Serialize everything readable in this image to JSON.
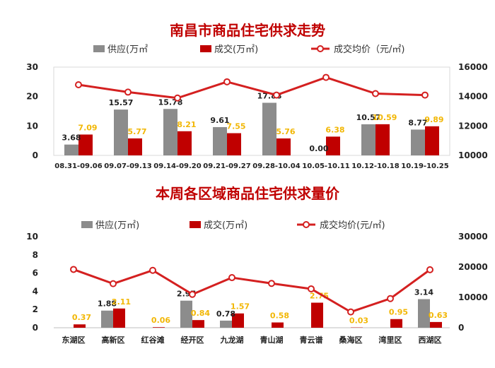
{
  "colors": {
    "supply": "#8c8c8c",
    "deal": "#c00000",
    "price": "#d42020",
    "value_label": "#f2b705",
    "title": "#c00000"
  },
  "legend": {
    "supply": "供应(万㎡",
    "deal": "成交(万㎡)",
    "price": "成交均价（元/㎡)"
  },
  "legend2": {
    "supply": "供应(万㎡)",
    "deal": "成交(万㎡)",
    "price": "成交均价(元/㎡)"
  },
  "chart_data": [
    {
      "type": "bar",
      "title": "南昌市商品住宅供求走势",
      "categories": [
        "08.31-09.06",
        "09.07-09.13",
        "09.14-09.20",
        "09.21-09.27",
        "09.28-10.04",
        "10.05-10.11",
        "10.12-10.18",
        "10.19-10.25"
      ],
      "series": [
        {
          "name": "供应(万㎡",
          "values": [
            3.68,
            15.57,
            15.78,
            9.61,
            17.88,
            0.0,
            10.57,
            8.77
          ],
          "labels": [
            "3.68",
            "15.57",
            "15.78",
            "9.61",
            "17.88",
            "0.00",
            "10.57",
            "8.77"
          ]
        },
        {
          "name": "成交(万㎡)",
          "values": [
            7.09,
            5.77,
            8.21,
            7.55,
            5.76,
            6.38,
            10.59,
            9.89
          ],
          "labels": [
            "7.09",
            "5.77",
            "8.21",
            "7.55",
            "5.76",
            "6.38",
            "10.59",
            "9.89"
          ]
        },
        {
          "name": "成交均价（元/㎡)",
          "type": "line",
          "axis": "right",
          "values": [
            14800,
            14300,
            13900,
            15000,
            14100,
            15300,
            14200,
            14100
          ]
        }
      ],
      "ylim": [
        0,
        30
      ],
      "yticks": [
        "0",
        "10",
        "20",
        "30"
      ],
      "y2lim": [
        10000,
        16000
      ],
      "y2ticks": [
        "10000",
        "12000",
        "14000",
        "16000"
      ]
    },
    {
      "type": "bar",
      "title": "本周各区域商品住宅供求量价",
      "categories": [
        "东湖区",
        "高新区",
        "红谷滩",
        "经开区",
        "九龙湖",
        "青山湖",
        "青云谱",
        "桑海区",
        "湾里区",
        "西湖区"
      ],
      "series": [
        {
          "name": "供应(万㎡)",
          "values": [
            0,
            1.88,
            0,
            2.97,
            0.78,
            0,
            0,
            0,
            0,
            3.14
          ],
          "labels": [
            "",
            "1.88",
            "",
            "2.97",
            "0.78",
            "",
            "",
            "",
            "",
            "3.14"
          ]
        },
        {
          "name": "成交(万㎡)",
          "values": [
            0.37,
            2.11,
            0.06,
            0.84,
            1.57,
            0.58,
            2.75,
            0.03,
            0.95,
            0.63
          ],
          "labels": [
            "0.37",
            "2.11",
            "0.06",
            "0.84",
            "1.57",
            "0.58",
            "2.75",
            "0.03",
            "0.95",
            "0.63"
          ]
        },
        {
          "name": "成交均价(元/㎡)",
          "type": "line",
          "axis": "right",
          "values": [
            19200,
            14500,
            18900,
            11000,
            16500,
            14600,
            12800,
            5200,
            9600,
            19100
          ]
        }
      ],
      "ylim": [
        0,
        10
      ],
      "yticks": [
        "0",
        "2",
        "4",
        "6",
        "8",
        "10"
      ],
      "y2lim": [
        0,
        30000
      ],
      "y2ticks": [
        "0",
        "10000",
        "20000",
        "30000"
      ]
    }
  ]
}
